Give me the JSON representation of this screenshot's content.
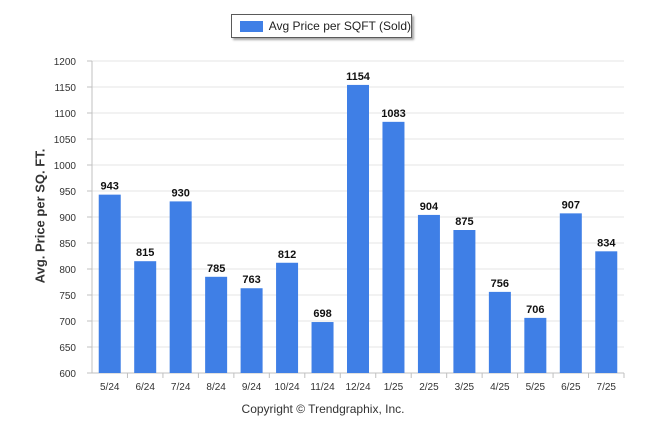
{
  "chart_data": {
    "type": "bar",
    "title": "",
    "xlabel": "",
    "ylabel": "Avg. Price per SQ. FT.",
    "ylim": [
      600,
      1200
    ],
    "ytick_step": 50,
    "yticks": [
      "600",
      "650",
      "700",
      "750",
      "800",
      "850",
      "900",
      "950",
      "1000",
      "1050",
      "1100",
      "1150",
      "1200"
    ],
    "grid": true,
    "legend_position": "top-center",
    "categories": [
      "5/24",
      "6/24",
      "7/24",
      "8/24",
      "9/24",
      "10/24",
      "11/24",
      "12/24",
      "1/25",
      "2/25",
      "3/25",
      "4/25",
      "5/25",
      "6/25",
      "7/25"
    ],
    "series": [
      {
        "name": "Avg Price per SQFT (Sold)",
        "color": "#3f7fe6",
        "values": [
          943,
          815,
          930,
          785,
          763,
          812,
          698,
          1154,
          1083,
          904,
          875,
          756,
          706,
          907,
          834
        ],
        "labels": [
          "943",
          "815",
          "930",
          "785",
          "763",
          "812",
          "698",
          "1154",
          "1083",
          "904",
          "875",
          "756",
          "706",
          "907",
          "834"
        ]
      }
    ]
  },
  "legend": {
    "label": "Avg Price per SQFT (Sold)",
    "swatch_color": "#3f7fe6"
  },
  "footer": {
    "copyright": "Copyright © Trendgraphix, Inc."
  }
}
